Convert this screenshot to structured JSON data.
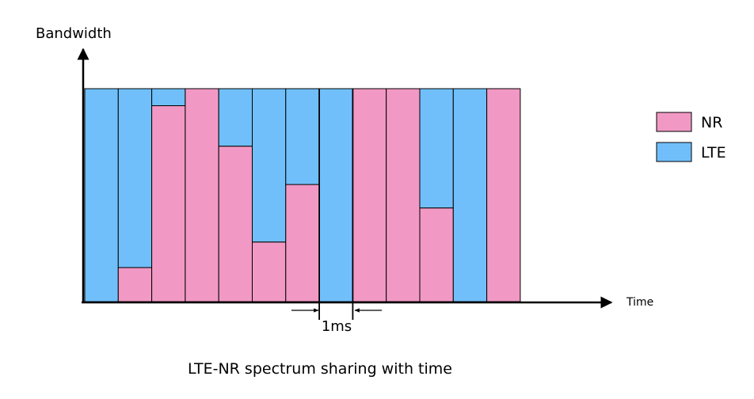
{
  "chart_data": {
    "type": "bar",
    "stacked": true,
    "caption": "LTE-NR spectrum sharing with time",
    "xlabel": "Time",
    "ylabel": "Bandwidth",
    "ylim": [
      0,
      1
    ],
    "slots": 13,
    "series": [
      {
        "name": "NR",
        "color": "#f199c4",
        "values": [
          0,
          0.16,
          0.92,
          1,
          0.73,
          0.28,
          0.55,
          0,
          1,
          1,
          0.44,
          0,
          1
        ]
      },
      {
        "name": "LTE",
        "color": "#70bffa",
        "values": [
          1,
          0.84,
          0.08,
          0,
          0.27,
          0.72,
          0.45,
          1,
          0,
          0,
          0.56,
          1,
          0
        ]
      }
    ],
    "legend_position": "right",
    "annotation": {
      "label": "1ms",
      "slot_index": 7
    }
  }
}
